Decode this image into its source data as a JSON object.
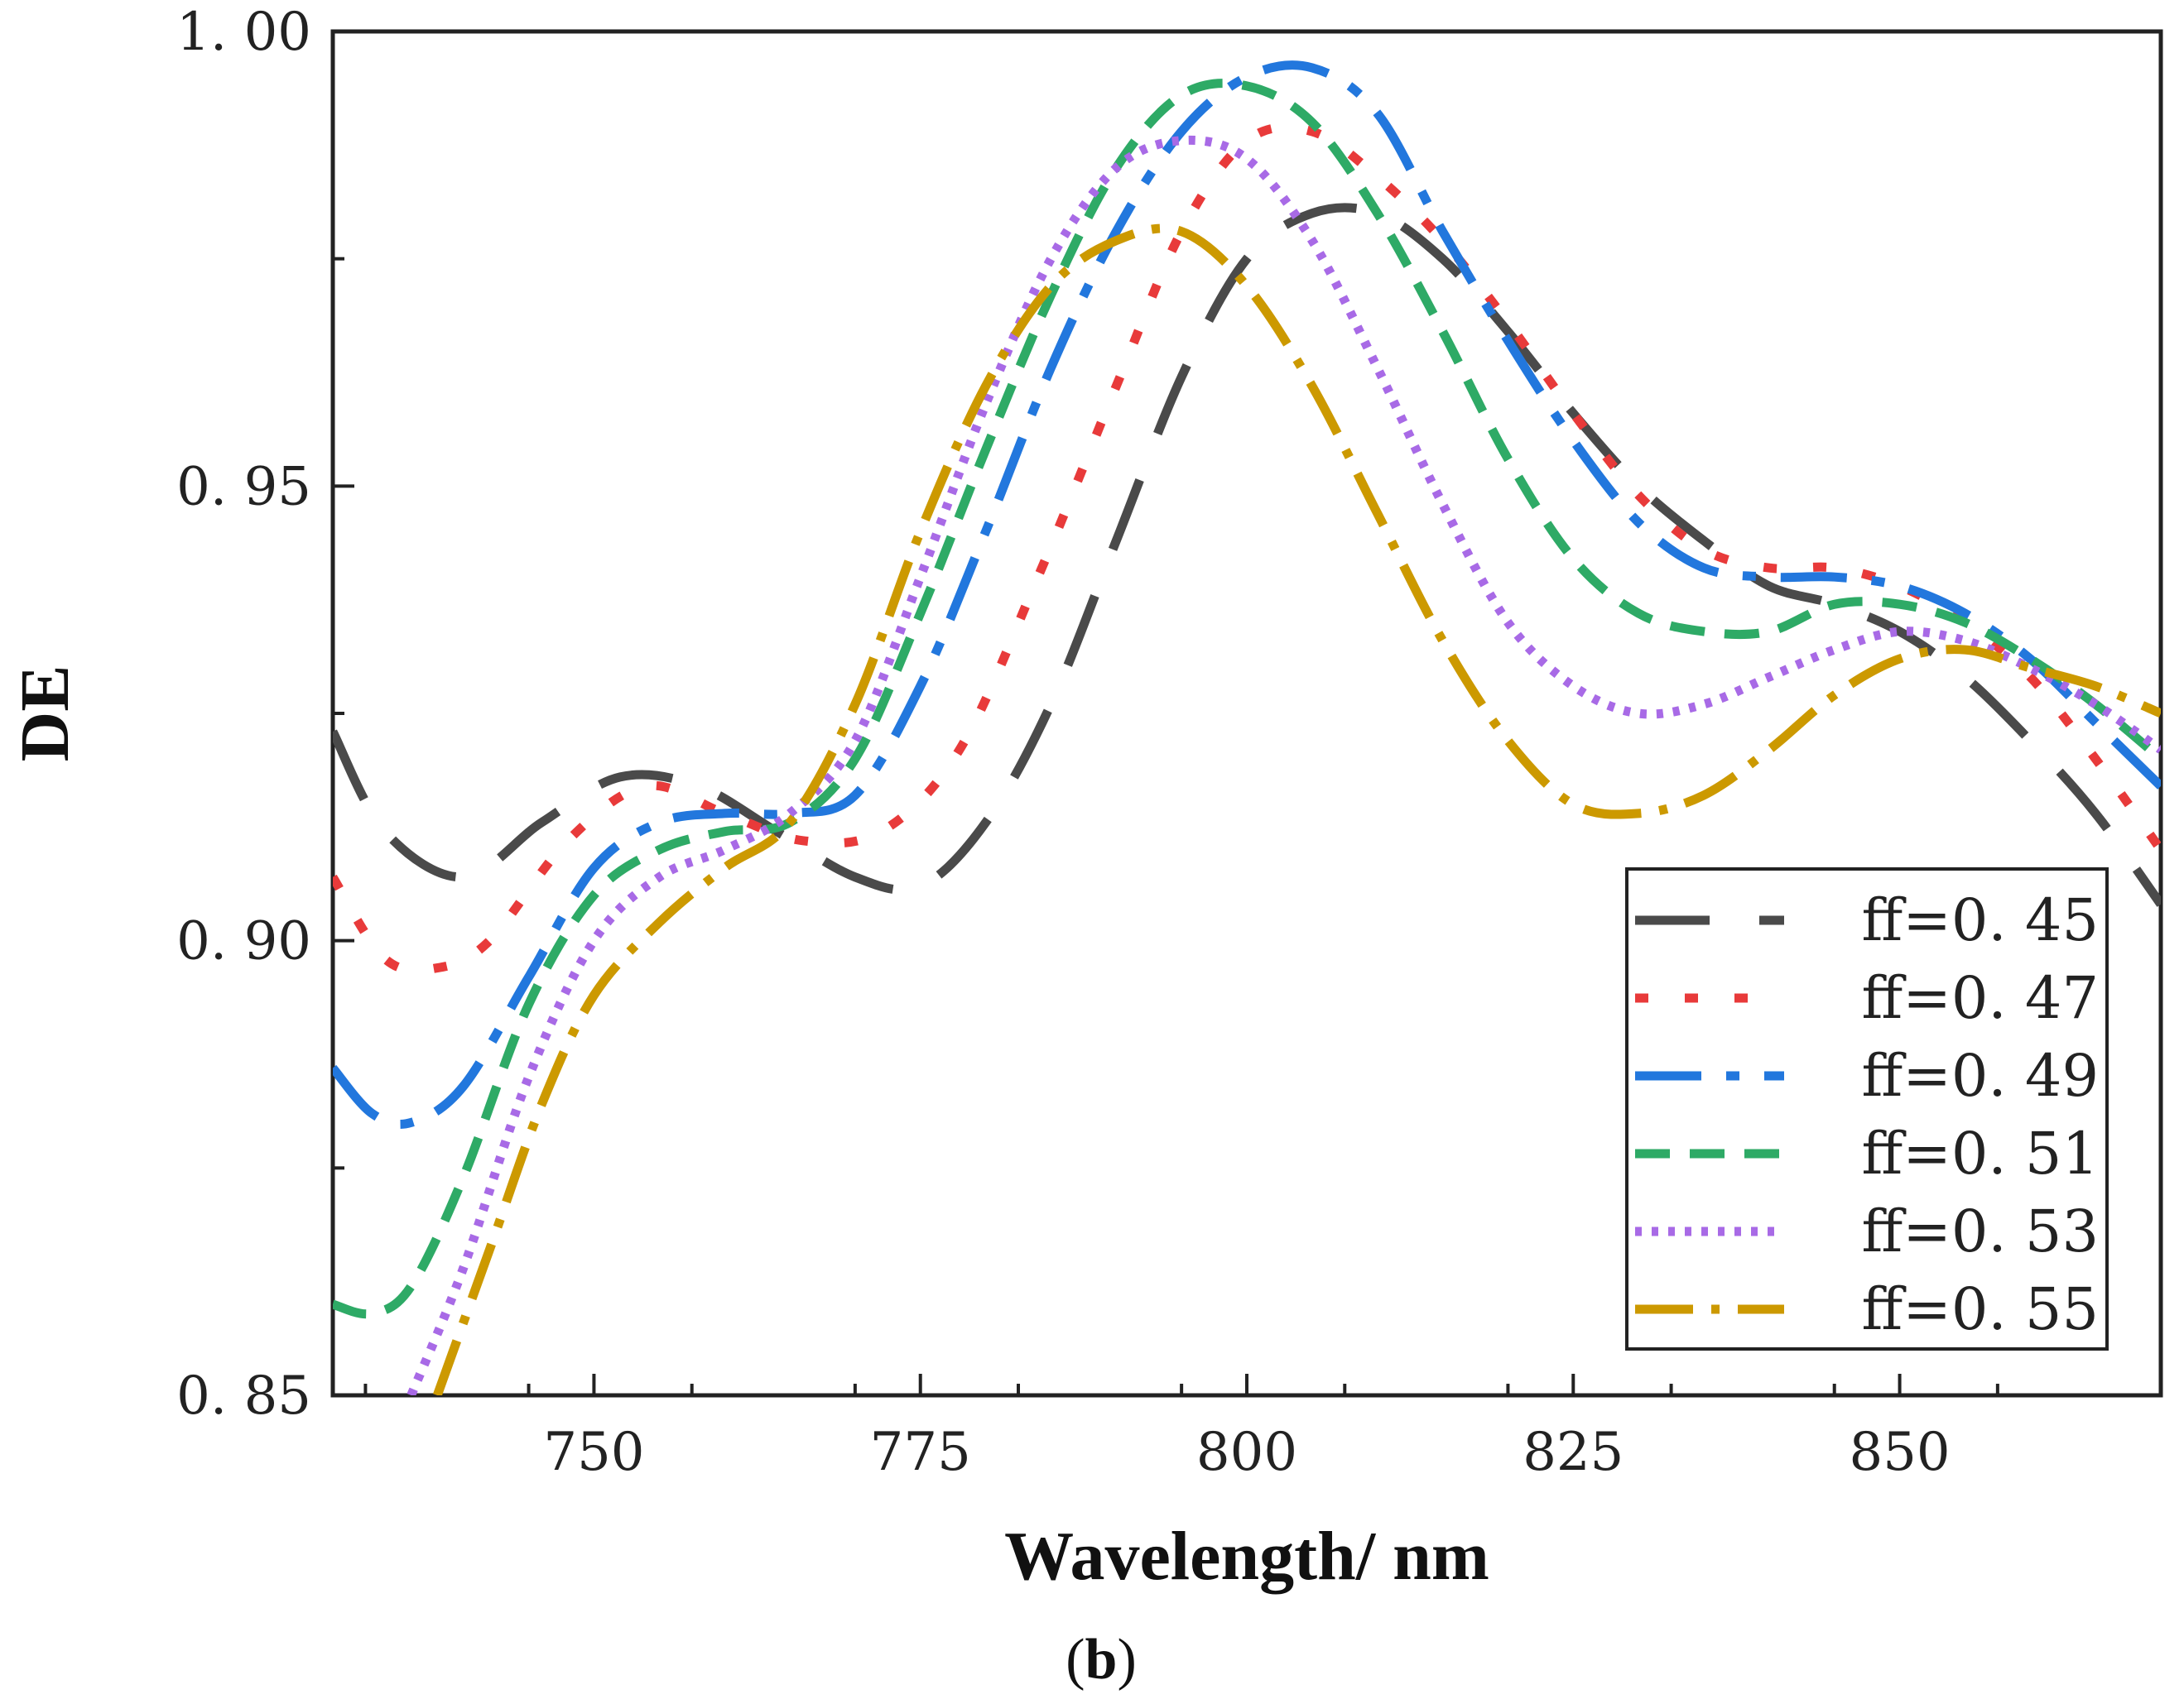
{
  "chart_data": {
    "type": "line",
    "title": "",
    "xlabel": "Wavelength/ nm",
    "ylabel": "DE",
    "panel_label": {
      "open": "(",
      "letter": "b",
      "close": ")"
    },
    "xlim": [
      730,
      870
    ],
    "ylim": [
      0.85,
      1.0
    ],
    "x_ticks": [
      750,
      775,
      800,
      825,
      850
    ],
    "x_tick_labels": [
      "750",
      "775",
      "800",
      "825",
      "850"
    ],
    "y_ticks": [
      0.85,
      0.9,
      0.95,
      1.0
    ],
    "y_tick_labels": [
      "0. 85",
      "0. 90",
      "0. 95",
      "1. 00"
    ],
    "legend_position": "lower-right",
    "series": [
      {
        "name": "ff=0. 45",
        "color": "#4a4a4a",
        "dash": "90,60",
        "points": [
          [
            730,
            0.923
          ],
          [
            734,
            0.912
          ],
          [
            740,
            0.907
          ],
          [
            746,
            0.913
          ],
          [
            752,
            0.918
          ],
          [
            758,
            0.917
          ],
          [
            764,
            0.912
          ],
          [
            770,
            0.907
          ],
          [
            775,
            0.906
          ],
          [
            780,
            0.913
          ],
          [
            785,
            0.926
          ],
          [
            790,
            0.944
          ],
          [
            795,
            0.962
          ],
          [
            800,
            0.975
          ],
          [
            805,
            0.98
          ],
          [
            810,
            0.98
          ],
          [
            815,
            0.975
          ],
          [
            820,
            0.967
          ],
          [
            825,
            0.958
          ],
          [
            830,
            0.95
          ],
          [
            835,
            0.944
          ],
          [
            840,
            0.939
          ],
          [
            845,
            0.937
          ],
          [
            850,
            0.934
          ],
          [
            855,
            0.929
          ],
          [
            860,
            0.922
          ],
          [
            865,
            0.914
          ],
          [
            870,
            0.904
          ]
        ]
      },
      {
        "name": "ff=0. 47",
        "color": "#e83a3a",
        "dash": "16,44",
        "points": [
          [
            730,
            0.907
          ],
          [
            734,
            0.898
          ],
          [
            738,
            0.897
          ],
          [
            742,
            0.9
          ],
          [
            748,
            0.911
          ],
          [
            754,
            0.917
          ],
          [
            760,
            0.914
          ],
          [
            766,
            0.911
          ],
          [
            772,
            0.912
          ],
          [
            778,
            0.921
          ],
          [
            784,
            0.94
          ],
          [
            790,
            0.961
          ],
          [
            795,
            0.978
          ],
          [
            800,
            0.988
          ],
          [
            805,
            0.989
          ],
          [
            810,
            0.984
          ],
          [
            815,
            0.977
          ],
          [
            820,
            0.968
          ],
          [
            825,
            0.958
          ],
          [
            830,
            0.949
          ],
          [
            835,
            0.943
          ],
          [
            840,
            0.941
          ],
          [
            845,
            0.941
          ],
          [
            850,
            0.939
          ],
          [
            855,
            0.935
          ],
          [
            860,
            0.929
          ],
          [
            865,
            0.92
          ],
          [
            870,
            0.91
          ]
        ]
      },
      {
        "name": "ff=0. 49",
        "color": "#2277dd",
        "dash": "80,30,16,30",
        "points": [
          [
            730,
            0.886
          ],
          [
            733,
            0.881
          ],
          [
            736,
            0.88
          ],
          [
            740,
            0.884
          ],
          [
            745,
            0.896
          ],
          [
            750,
            0.908
          ],
          [
            755,
            0.913
          ],
          [
            760,
            0.914
          ],
          [
            765,
            0.914
          ],
          [
            770,
            0.916
          ],
          [
            775,
            0.928
          ],
          [
            780,
            0.945
          ],
          [
            785,
            0.963
          ],
          [
            790,
            0.978
          ],
          [
            795,
            0.989
          ],
          [
            800,
            0.995
          ],
          [
            805,
            0.996
          ],
          [
            810,
            0.991
          ],
          [
            815,
            0.978
          ],
          [
            820,
            0.966
          ],
          [
            825,
            0.955
          ],
          [
            830,
            0.946
          ],
          [
            835,
            0.941
          ],
          [
            840,
            0.94
          ],
          [
            845,
            0.94
          ],
          [
            850,
            0.939
          ],
          [
            855,
            0.936
          ],
          [
            860,
            0.931
          ],
          [
            865,
            0.924
          ],
          [
            870,
            0.917
          ]
        ]
      },
      {
        "name": "ff=0. 51",
        "color": "#2eaa66",
        "dash": "42,24",
        "points": [
          [
            730,
            0.86
          ],
          [
            733,
            0.859
          ],
          [
            736,
            0.862
          ],
          [
            740,
            0.874
          ],
          [
            745,
            0.893
          ],
          [
            750,
            0.905
          ],
          [
            755,
            0.91
          ],
          [
            760,
            0.912
          ],
          [
            765,
            0.913
          ],
          [
            770,
            0.92
          ],
          [
            775,
            0.936
          ],
          [
            780,
            0.954
          ],
          [
            785,
            0.971
          ],
          [
            790,
            0.985
          ],
          [
            795,
            0.993
          ],
          [
            800,
            0.994
          ],
          [
            805,
            0.99
          ],
          [
            810,
            0.98
          ],
          [
            815,
            0.967
          ],
          [
            820,
            0.953
          ],
          [
            825,
            0.942
          ],
          [
            830,
            0.936
          ],
          [
            835,
            0.934
          ],
          [
            840,
            0.934
          ],
          [
            845,
            0.937
          ],
          [
            850,
            0.937
          ],
          [
            855,
            0.935
          ],
          [
            860,
            0.931
          ],
          [
            865,
            0.926
          ],
          [
            870,
            0.92
          ]
        ]
      },
      {
        "name": "ff=0. 53",
        "color": "#a86ae6",
        "dash": "8,12",
        "points": [
          [
            736,
            0.85
          ],
          [
            740,
            0.864
          ],
          [
            745,
            0.885
          ],
          [
            750,
            0.9
          ],
          [
            755,
            0.907
          ],
          [
            760,
            0.91
          ],
          [
            765,
            0.914
          ],
          [
            770,
            0.922
          ],
          [
            775,
            0.94
          ],
          [
            780,
            0.959
          ],
          [
            785,
            0.975
          ],
          [
            790,
            0.985
          ],
          [
            795,
            0.988
          ],
          [
            800,
            0.986
          ],
          [
            805,
            0.977
          ],
          [
            810,
            0.963
          ],
          [
            815,
            0.948
          ],
          [
            820,
            0.935
          ],
          [
            825,
            0.928
          ],
          [
            830,
            0.925
          ],
          [
            835,
            0.926
          ],
          [
            840,
            0.929
          ],
          [
            845,
            0.932
          ],
          [
            850,
            0.934
          ],
          [
            855,
            0.933
          ],
          [
            860,
            0.93
          ],
          [
            865,
            0.926
          ],
          [
            870,
            0.921
          ]
        ]
      },
      {
        "name": "ff=0. 55",
        "color": "#cc9900",
        "dash": "70,22,10,22",
        "points": [
          [
            738,
            0.85
          ],
          [
            742,
            0.866
          ],
          [
            746,
            0.882
          ],
          [
            750,
            0.894
          ],
          [
            755,
            0.902
          ],
          [
            760,
            0.908
          ],
          [
            765,
            0.913
          ],
          [
            770,
            0.926
          ],
          [
            775,
            0.945
          ],
          [
            780,
            0.961
          ],
          [
            785,
            0.972
          ],
          [
            790,
            0.977
          ],
          [
            795,
            0.978
          ],
          [
            800,
            0.972
          ],
          [
            805,
            0.961
          ],
          [
            810,
            0.947
          ],
          [
            815,
            0.933
          ],
          [
            820,
            0.922
          ],
          [
            825,
            0.915
          ],
          [
            830,
            0.914
          ],
          [
            835,
            0.916
          ],
          [
            840,
            0.921
          ],
          [
            845,
            0.927
          ],
          [
            850,
            0.931
          ],
          [
            855,
            0.932
          ],
          [
            860,
            0.93
          ],
          [
            865,
            0.928
          ],
          [
            870,
            0.925
          ]
        ]
      }
    ]
  }
}
